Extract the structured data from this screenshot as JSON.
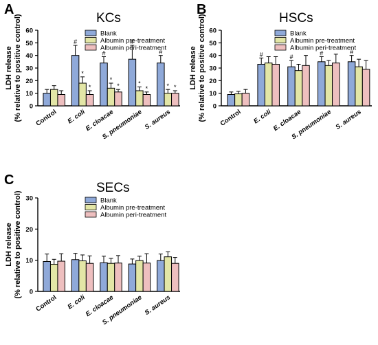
{
  "legend": [
    "Blank",
    "Albumin pre-treatment",
    "Albumin peri-treatment"
  ],
  "colors": {
    "Blank": "#8fa9d9",
    "Albumin pre-treatment": "#e3e6a6",
    "Albumin peri-treatment": "#eebfbf"
  },
  "chart_data": [
    {
      "panel": "A",
      "title": "KCs",
      "type": "bar",
      "ylabel_line1": "LDH release",
      "ylabel_line2": "(% relative to positive control)",
      "ylim": [
        0,
        60
      ],
      "yticks": [
        0,
        10,
        20,
        30,
        40,
        50,
        60
      ],
      "categories": [
        "Control",
        "E. coli",
        "E. cloacae",
        "S. pneumoniae",
        "S. aureus"
      ],
      "italic": [
        false,
        true,
        true,
        true,
        true
      ],
      "series": [
        {
          "name": "Blank",
          "values": [
            10,
            40,
            34,
            37,
            34
          ],
          "errors": [
            3,
            8,
            5,
            11,
            6
          ],
          "annotations": [
            "",
            "#",
            "#",
            "#",
            "#"
          ]
        },
        {
          "name": "Albumin pre-treatment",
          "values": [
            13,
            18,
            14,
            12,
            10
          ],
          "errors": [
            3,
            5,
            4,
            3,
            3
          ],
          "annotations": [
            "",
            "*",
            "*",
            "*",
            "*"
          ]
        },
        {
          "name": "Albumin peri-treatment",
          "values": [
            9,
            9,
            11,
            9,
            10
          ],
          "errors": [
            3,
            3,
            2,
            2,
            2
          ],
          "annotations": [
            "",
            "*",
            "*",
            "*",
            "*"
          ]
        }
      ]
    },
    {
      "panel": "B",
      "title": "HSCs",
      "type": "bar",
      "ylabel_line1": "LDH release",
      "ylabel_line2": "(% relative to positive control)",
      "ylim": [
        0,
        60
      ],
      "yticks": [
        0,
        10,
        20,
        30,
        40,
        50,
        60
      ],
      "categories": [
        "Control",
        "E. coli",
        "E. cloacae",
        "S. pneumoniae",
        "S. aureus"
      ],
      "italic": [
        false,
        true,
        true,
        true,
        true
      ],
      "series": [
        {
          "name": "Blank",
          "values": [
            9,
            33,
            31,
            35,
            35
          ],
          "errors": [
            2,
            5,
            5,
            4,
            5
          ],
          "annotations": [
            "",
            "#",
            "#",
            "#",
            "#"
          ]
        },
        {
          "name": "Albumin pre-treatment",
          "values": [
            9.5,
            34,
            28,
            32,
            31
          ],
          "errors": [
            2,
            5,
            5,
            4,
            6
          ],
          "annotations": [
            "",
            "",
            "",
            "",
            ""
          ]
        },
        {
          "name": "Albumin peri-treatment",
          "values": [
            10,
            33,
            32,
            34,
            29
          ],
          "errors": [
            3,
            6,
            8,
            7,
            7
          ],
          "annotations": [
            "",
            "",
            "",
            "",
            ""
          ]
        }
      ]
    },
    {
      "panel": "C",
      "title": "SECs",
      "type": "bar",
      "ylabel_line1": "LDH release",
      "ylabel_line2": "(% relative to positive control)",
      "ylim": [
        0,
        30
      ],
      "yticks": [
        0,
        10,
        20,
        30
      ],
      "categories": [
        "Control",
        "E. coli",
        "E. cloacae",
        "S. pneumoniae",
        "S. aureus"
      ],
      "italic": [
        false,
        true,
        true,
        true,
        true
      ],
      "series": [
        {
          "name": "Blank",
          "values": [
            9.6,
            10.2,
            9.2,
            8.8,
            9.9
          ],
          "errors": [
            2.4,
            2.0,
            2.1,
            1.6,
            2.1
          ],
          "annotations": [
            "",
            "",
            "",
            "",
            ""
          ]
        },
        {
          "name": "Albumin pre-treatment",
          "values": [
            8.7,
            9.8,
            9.0,
            9.9,
            11.1
          ],
          "errors": [
            1.6,
            1.9,
            1.6,
            1.4,
            1.6
          ],
          "annotations": [
            "",
            "",
            "",
            "",
            ""
          ]
        },
        {
          "name": "Albumin peri-treatment",
          "values": [
            9.7,
            9.0,
            9.1,
            9.1,
            9.0
          ],
          "errors": [
            2.4,
            2.4,
            2.4,
            3.0,
            1.9
          ],
          "annotations": [
            "",
            "",
            "",
            "",
            ""
          ]
        }
      ]
    }
  ]
}
